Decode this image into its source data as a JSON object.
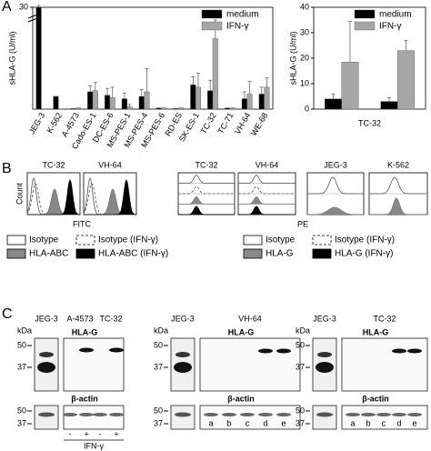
{
  "chart_data": [
    {
      "type": "bar",
      "panel_label": "A",
      "ylabel": "sHLA-G (U/ml)",
      "categories": [
        "JEG-3",
        "K-562",
        "A-4573",
        "Cado-ES-1",
        "DC-ES-6",
        "MS-PES-1",
        "MS-PES-4",
        "MS-PES-6",
        "RD-ES",
        "SK-ES-1",
        "TC-32",
        "TC-71",
        "VH-64",
        "WE-68"
      ],
      "series": [
        {
          "name": "medium",
          "color": "#000000",
          "values": [
            30,
            1.1,
            0.05,
            1.5,
            1.2,
            0.9,
            1.1,
            0.1,
            0.05,
            2.1,
            1.6,
            0.1,
            0.9,
            1.3
          ],
          "errors": [
            0.3,
            0,
            0,
            0.5,
            0.6,
            0.5,
            0.6,
            0,
            0,
            0.7,
            0.9,
            0,
            0.6,
            0.6
          ]
        },
        {
          "name": "IFN-γ",
          "color": "#a6a6a6",
          "values": [
            0,
            0,
            0.1,
            1.6,
            1.0,
            0.2,
            1.5,
            0.1,
            0.1,
            1.9,
            6.1,
            0.1,
            1.3,
            1.9
          ],
          "errors": [
            0,
            0,
            0,
            0.7,
            0.9,
            0.2,
            2.0,
            0,
            0,
            1.2,
            1.5,
            0,
            1.1,
            0.8
          ]
        }
      ],
      "ylim": [
        0,
        30
      ],
      "axis_break": [
        7.4,
        28.5
      ],
      "yticks": [
        30
      ],
      "legend": "upper right"
    },
    {
      "type": "bar",
      "ylabel": "sHLA-G (U/ml)",
      "xlabel": "TC-32",
      "categories": [
        null,
        null
      ],
      "series": [
        {
          "name": "medium",
          "color": "#000000",
          "values": [
            4,
            3
          ],
          "errors": [
            2,
            1.5
          ]
        },
        {
          "name": "IFN-γ",
          "color": "#a6a6a6",
          "values": [
            18.5,
            23
          ],
          "errors": [
            16,
            4
          ]
        }
      ],
      "ylim": [
        0,
        40
      ],
      "yticks": [
        0,
        10,
        20,
        30,
        40
      ],
      "legend": "upper right"
    }
  ],
  "panel_b": {
    "label": "B",
    "ylabel": "Count",
    "left": {
      "titles": [
        "TC-32",
        "VH-64"
      ],
      "xlabel": "FITC",
      "legend": [
        "Isotype",
        "Isotype (IFN-γ)",
        "HLA-ABC",
        "HLA-ABC (IFN-γ)"
      ]
    },
    "right": {
      "titles": [
        "TC-32",
        "VH-64",
        "JEG-3",
        "K-562"
      ],
      "xlabel": "PE",
      "legend": [
        "Isotype",
        "Isotype (IFN-γ)",
        "HLA-G",
        "HLA-G (IFN-γ)"
      ]
    }
  },
  "panel_c": {
    "label": "C",
    "blots": [
      {
        "lanes": [
          "JEG-3",
          "A-4573",
          "TC-32"
        ],
        "kda_label": "kDa",
        "markers_top": [
          "50",
          "37"
        ],
        "target": "HLA-G",
        "loading": "β-actin",
        "markers_bottom": [
          "50",
          "37"
        ],
        "treatment": [
          "-",
          "+",
          "-",
          "+"
        ],
        "treatment_label": "IFN-γ"
      },
      {
        "lanes": [
          "JEG-3",
          "VH-64"
        ],
        "kda_label": "kDa",
        "markers_top": [
          "50",
          "37"
        ],
        "target": "HLA-G",
        "loading": "β-actin",
        "markers_bottom": [
          "50",
          "37"
        ],
        "lane_letters": [
          "a",
          "b",
          "c",
          "d",
          "e"
        ]
      },
      {
        "lanes": [
          "JEG-3",
          "TC-32"
        ],
        "kda_label": "kDa",
        "markers_top": [
          "50",
          "37"
        ],
        "target": "HLA-G",
        "loading": "β-actin",
        "markers_bottom": [
          "50",
          "37"
        ],
        "lane_letters": [
          "a",
          "b",
          "c",
          "d",
          "e"
        ]
      }
    ]
  }
}
